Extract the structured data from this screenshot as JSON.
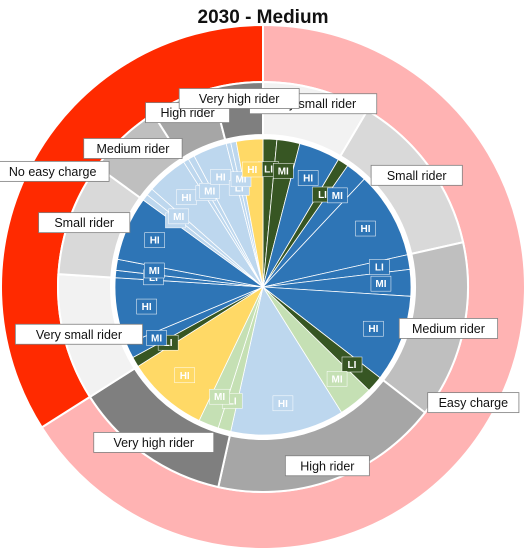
{
  "chart_data": {
    "type": "pie",
    "title": "2030 - Medium",
    "colors": {
      "no_easy_charge": "#ff2a00",
      "easy_charge": "#ffb3b3",
      "LI": "#375623",
      "MI": "#375623",
      "HI_small": "#2e75b6",
      "HI_large": "#2e75b6",
      "very_small": "#f2f2f2",
      "small": "#d9d9d9",
      "medium": "#bfbfbf",
      "high": "#a6a6a6",
      "very_high": "#7f7f7f"
    },
    "outer_ring": [
      {
        "label": "Easy charge",
        "value": 66,
        "color": "#ffb3b3"
      },
      {
        "label": "No easy charge",
        "value": 34,
        "color": "#ff2a00"
      }
    ],
    "middle_ring": [
      {
        "label": "Very small rider",
        "value": 8.5,
        "color": "#f2f2f2"
      },
      {
        "label": "Small rider",
        "value": 13,
        "color": "#d9d9d9"
      },
      {
        "label": "Medium rider",
        "value": 14,
        "color": "#bfbfbf"
      },
      {
        "label": "High rider",
        "value": 18,
        "color": "#a6a6a6"
      },
      {
        "label": "Very high rider",
        "value": 12.5,
        "color": "#7f7f7f"
      },
      {
        "label": "Very small rider",
        "value": 10,
        "color": "#f2f2f2"
      },
      {
        "label": "Small rider",
        "value": 9,
        "color": "#d9d9d9"
      },
      {
        "label": "Medium rider",
        "value": 6,
        "color": "#bfbfbf"
      },
      {
        "label": "High rider",
        "value": 5,
        "color": "#a6a6a6"
      },
      {
        "label": "Very high rider",
        "value": 4,
        "color": "#7f7f7f"
      }
    ],
    "inner_ring": [
      {
        "label": "LI",
        "value": 1.5,
        "color": "#375623"
      },
      {
        "label": "MI",
        "value": 2.5,
        "color": "#375623"
      },
      {
        "label": "HI",
        "value": 4.5,
        "color": "#2e75b6"
      },
      {
        "label": "LI",
        "value": 1.2,
        "color": "#375623"
      },
      {
        "label": "MI",
        "value": 2.3,
        "color": "#2e75b6"
      },
      {
        "label": "HI",
        "value": 9.5,
        "color": "#2e75b6"
      },
      {
        "label": "LI",
        "value": 1.6,
        "color": "#2e75b6"
      },
      {
        "label": "MI",
        "value": 2.9,
        "color": "#2e75b6"
      },
      {
        "label": "HI",
        "value": 9.5,
        "color": "#2e75b6"
      },
      {
        "label": "LI",
        "value": 1.8,
        "color": "#375623"
      },
      {
        "label": "MI",
        "value": 3.8,
        "color": "#c5e0b4"
      },
      {
        "label": "HI",
        "value": 12.4,
        "color": "#bdd7ee"
      },
      {
        "label": "LI",
        "value": 1.4,
        "color": "#c5e0b4"
      },
      {
        "label": "MI",
        "value": 2.2,
        "color": "#c5e0b4"
      },
      {
        "label": "HI",
        "value": 8.9,
        "color": "#ffd966"
      },
      {
        "label": "LI",
        "value": 1.1,
        "color": "#375623"
      },
      {
        "label": "MI",
        "value": 1.6,
        "color": "#2e75b6"
      },
      {
        "label": "HI",
        "value": 7.3,
        "color": "#2e75b6"
      },
      {
        "label": "LI",
        "value": 0.8,
        "color": "#2e75b6"
      },
      {
        "label": "MI",
        "value": 1.2,
        "color": "#2e75b6"
      },
      {
        "label": "HI",
        "value": 7.0,
        "color": "#2e75b6"
      },
      {
        "label": "LI",
        "value": 0.7,
        "color": "#bdd7ee"
      },
      {
        "label": "MI",
        "value": 0.8,
        "color": "#bdd7ee"
      },
      {
        "label": "HI",
        "value": 4.5,
        "color": "#bdd7ee"
      },
      {
        "label": "LI",
        "value": 0.6,
        "color": "#bdd7ee"
      },
      {
        "label": "MI",
        "value": 0.7,
        "color": "#bdd7ee"
      },
      {
        "label": "HI",
        "value": 3.7,
        "color": "#bdd7ee"
      },
      {
        "label": "LI",
        "value": 0.5,
        "color": "#bdd7ee"
      },
      {
        "label": "MI",
        "value": 0.6,
        "color": "#bdd7ee"
      },
      {
        "label": "HI",
        "value": 2.9,
        "color": "#ffd966"
      }
    ]
  }
}
